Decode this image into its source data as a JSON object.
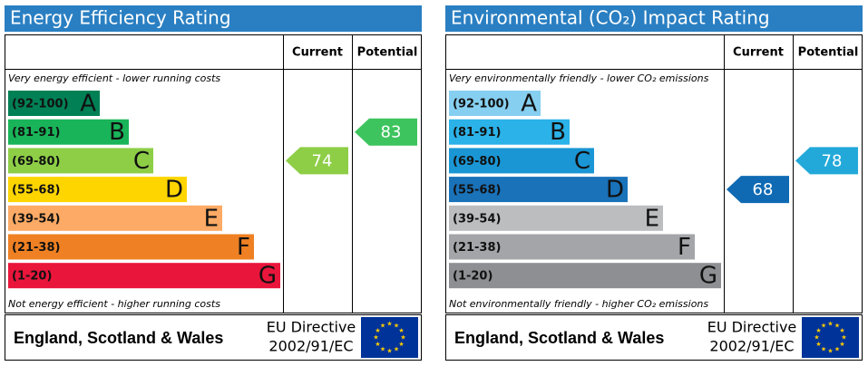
{
  "panels": [
    {
      "title": "Energy Efficiency Rating",
      "current_header": "Current",
      "potential_header": "Potential",
      "top_note": "Very energy efficient - lower running costs",
      "bottom_note": "Not energy efficient - higher running costs",
      "bands": [
        {
          "range": "(92-100)",
          "letter": "A",
          "color": "#008054"
        },
        {
          "range": "(81-91)",
          "letter": "B",
          "color": "#19b459"
        },
        {
          "range": "(69-80)",
          "letter": "C",
          "color": "#8dce46"
        },
        {
          "range": "(55-68)",
          "letter": "D",
          "color": "#ffd500"
        },
        {
          "range": "(39-54)",
          "letter": "E",
          "color": "#fcaa65"
        },
        {
          "range": "(21-38)",
          "letter": "F",
          "color": "#ef8023"
        },
        {
          "range": "(1-20)",
          "letter": "G",
          "color": "#e9153b"
        }
      ],
      "current": {
        "value": 74,
        "color": "#8dce46"
      },
      "potential": {
        "value": 83,
        "color": "#3ec45e"
      },
      "region": "England, Scotland & Wales",
      "directive": [
        "EU Directive",
        "2002/91/EC"
      ]
    },
    {
      "title": "Environmental (CO₂) Impact Rating",
      "current_header": "Current",
      "potential_header": "Potential",
      "top_note": "Very environmentally friendly - lower CO₂ emissions",
      "bottom_note": "Not environmentally friendly - higher CO₂ emissions",
      "bands": [
        {
          "range": "(92-100)",
          "letter": "A",
          "color": "#86cff0"
        },
        {
          "range": "(81-91)",
          "letter": "B",
          "color": "#2bb2e8"
        },
        {
          "range": "(69-80)",
          "letter": "C",
          "color": "#1a96d4"
        },
        {
          "range": "(55-68)",
          "letter": "D",
          "color": "#1a72b9"
        },
        {
          "range": "(39-54)",
          "letter": "E",
          "color": "#bbbdbf"
        },
        {
          "range": "(21-38)",
          "letter": "F",
          "color": "#a3a5a8"
        },
        {
          "range": "(1-20)",
          "letter": "G",
          "color": "#8e8f92"
        }
      ],
      "current": {
        "value": 68,
        "color": "#0f6ab3"
      },
      "potential": {
        "value": 78,
        "color": "#22a9d9"
      },
      "region": "England, Scotland & Wales",
      "directive": [
        "EU Directive",
        "2002/91/EC"
      ]
    }
  ]
}
